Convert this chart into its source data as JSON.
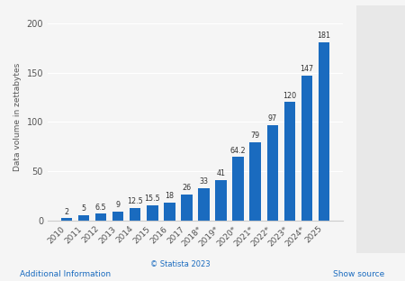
{
  "years": [
    "2010",
    "2011",
    "2012",
    "2013",
    "2014",
    "2015",
    "2016",
    "2017",
    "2018*",
    "2019*",
    "2020*",
    "2021*",
    "2022*",
    "2023*",
    "2024*",
    "2025"
  ],
  "values": [
    2,
    5,
    6.5,
    9,
    12.5,
    15.5,
    18,
    26,
    33,
    41,
    64.2,
    79,
    97,
    120,
    147,
    181
  ],
  "bar_color": "#1a6bbf",
  "ylabel": "Data volume in zettabytes",
  "yticks": [
    0,
    50,
    100,
    150,
    200
  ],
  "ylim": [
    0,
    210
  ],
  "bg_color": "#f5f5f5",
  "plot_bg_color": "#f5f5f5",
  "label_fontsize": 6.5,
  "bar_label_fontsize": 5.8,
  "footer_text": "© Statista 2023",
  "bottom_left": "Additional Information",
  "bottom_right": "Show source"
}
